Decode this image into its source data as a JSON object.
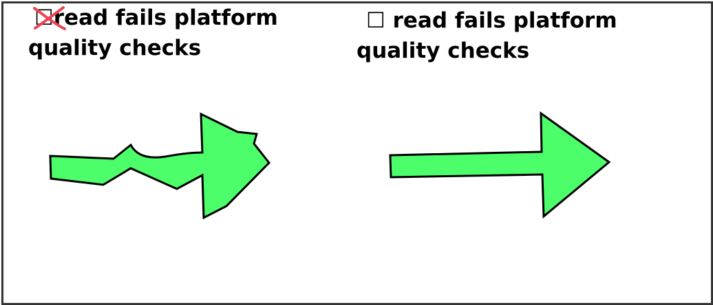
{
  "panels": [
    {
      "checkbox_glyph": "☐",
      "line1": "read fails platform",
      "line2": "quality checks",
      "checked": true,
      "arrow_style": "wobbly"
    },
    {
      "checkbox_glyph": "☐",
      "line1": "read fails platform",
      "line2": "quality checks",
      "checked": false,
      "arrow_style": "straight"
    }
  ],
  "colors": {
    "arrow_fill": "#4cff6a",
    "arrow_stroke": "#000000",
    "cross": "#ee4455",
    "frame": "#333333"
  }
}
